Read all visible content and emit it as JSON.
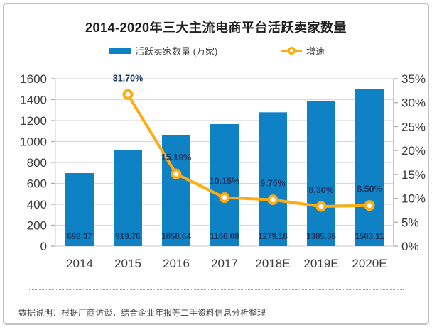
{
  "chart_data": {
    "type": "bar",
    "title": "2014-2020年三大主流电商平台活跃卖家数量",
    "categories": [
      "2014",
      "2015",
      "2016",
      "2017",
      "2018E",
      "2019E",
      "2020E"
    ],
    "series": [
      {
        "name": "活跃卖家数量 (万家)",
        "type": "bar",
        "axis": "left",
        "values": [
          698.37,
          919.76,
          1058.64,
          1166.08,
          1279.18,
          1385.36,
          1503.11
        ]
      },
      {
        "name": "增速",
        "type": "line",
        "axis": "right",
        "values": [
          null,
          31.7,
          15.1,
          10.15,
          9.7,
          8.3,
          8.5
        ]
      }
    ],
    "left_axis": {
      "min": 0,
      "max": 1600,
      "step": 200,
      "ticks": [
        "0",
        "200",
        "400",
        "600",
        "800",
        "1000",
        "1200",
        "1400",
        "1600"
      ]
    },
    "right_axis": {
      "min": 0,
      "max": 35,
      "step": 5,
      "ticks": [
        "0%",
        "5%",
        "10%",
        "15%",
        "20%",
        "25%",
        "30%",
        "35%"
      ]
    },
    "grid": true,
    "legend_position": "top"
  },
  "legend": {
    "bars": "活跃卖家数量 (万家)",
    "line": "增速"
  },
  "note": "数据说明：根据厂商访谈，结合企业年报等二手资料信息分析整理",
  "colors": {
    "bar": "#0F82C5",
    "line": "#FFAC12",
    "marker_fill": "#FFFFFF",
    "value_label": "#17375E",
    "pct_label": "#1F3864",
    "grid": "#D9D9D9",
    "tick": "#ADADAD",
    "axis_text": "#3B3B3B",
    "title_text": "#1F1F1F",
    "note_text": "#4D4D4D",
    "border": "#C2C2C2"
  }
}
